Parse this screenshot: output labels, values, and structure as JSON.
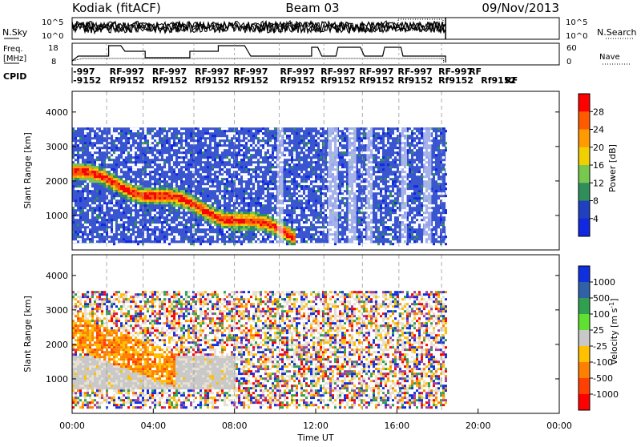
{
  "header": {
    "station": "Kodiak (fitACF)",
    "beam": "Beam 03",
    "date": "09/Nov/2013"
  },
  "top_panels": {
    "nsky_label": "N.Sky",
    "nsearch_label": "N.Search",
    "nsky_ticks": [
      "10^5",
      "10^0"
    ],
    "nsearch_ticks": [
      "10^5",
      "10^0"
    ],
    "freq_label": "Freq.",
    "freq_unit": "[MHz]",
    "freq_ticks": [
      "18",
      "8"
    ],
    "nave_label": "Nave",
    "nave_ticks": [
      "60",
      "0"
    ],
    "cpid_label": "CPID",
    "cpid_row1": [
      "-997",
      "RF-997",
      "RF-997",
      "RF-997",
      "RF-997",
      "RF-997",
      "RF-997",
      "RF-997",
      "RF-997",
      "RF-997",
      "RF"
    ],
    "cpid_row2": [
      "-9152",
      "Rf9152",
      "Rf9152",
      "Rf9152",
      "Rf9152",
      "Rf9152",
      "Rf9152",
      "Rf9152",
      "Rf9152",
      "Rf9152",
      "Rf9152",
      "RF"
    ]
  },
  "power_colorbar": {
    "title": "Power [dB]",
    "ticks": [
      "28",
      "24",
      "20",
      "16",
      "12",
      "8",
      "4"
    ],
    "colors": [
      "#ff0000",
      "#ff5a00",
      "#ff9a00",
      "#f0d000",
      "#78c850",
      "#2e8f5a",
      "#2040c0",
      "#1028e0"
    ]
  },
  "velocity_colorbar": {
    "title": "Velocity [m s-1]",
    "ticks": [
      "1000",
      "500",
      "100",
      "25",
      "-25",
      "-100",
      "-500",
      "-1000"
    ],
    "colors": [
      "#1030e0",
      "#3060a8",
      "#30a050",
      "#60e030",
      "#c8c8c8",
      "#ffc000",
      "#ff8000",
      "#ff4000",
      "#ff0000"
    ]
  },
  "chart_data": [
    {
      "type": "heatmap",
      "title": "Power",
      "ylabel": "Slant Range [km]",
      "xlabel": "",
      "x_range_hours": [
        0,
        24
      ],
      "ylim": [
        0,
        4600
      ],
      "y_ticks": [
        1000,
        2000,
        3000,
        4000
      ],
      "data_extent_hours": [
        0,
        18.4
      ],
      "data_extent_range_km": [
        200,
        3550
      ],
      "colorbar": "Power [dB]",
      "features": [
        {
          "name": "main echo band",
          "hours": [
            0,
            12
          ],
          "range_km": [
            450,
            2400
          ],
          "power_db": [
            16,
            30
          ]
        },
        {
          "name": "background scatter",
          "hours": [
            0,
            18.4
          ],
          "range_km": [
            200,
            3550
          ],
          "power_db": [
            0,
            8
          ]
        }
      ]
    },
    {
      "type": "heatmap",
      "title": "Velocity",
      "ylabel": "Slant Range [km]",
      "xlabel": "Time UT",
      "x_tick_labels": [
        "00:00",
        "04:00",
        "08:00",
        "12:00",
        "16:00",
        "20:00",
        "00:00"
      ],
      "x_range_hours": [
        0,
        24
      ],
      "ylim": [
        0,
        4600
      ],
      "y_ticks": [
        1000,
        2000,
        3000,
        4000
      ],
      "data_extent_hours": [
        0,
        18.4
      ],
      "data_extent_range_km": [
        200,
        3550
      ],
      "colorbar": "Velocity [m s-1]",
      "features": [
        {
          "name": "negative velocity band",
          "hours": [
            0,
            5
          ],
          "range_km": [
            1200,
            2900
          ],
          "velocity_ms": [
            -500,
            -100
          ]
        },
        {
          "name": "ground scatter",
          "hours": [
            0,
            8
          ],
          "range_km": [
            700,
            1700
          ],
          "velocity_ms": [
            -25,
            25
          ]
        }
      ]
    }
  ],
  "x_axis": {
    "ticks": [
      "00:00",
      "04:00",
      "08:00",
      "12:00",
      "16:00",
      "20:00",
      "00:00"
    ],
    "label": "Time UT"
  }
}
